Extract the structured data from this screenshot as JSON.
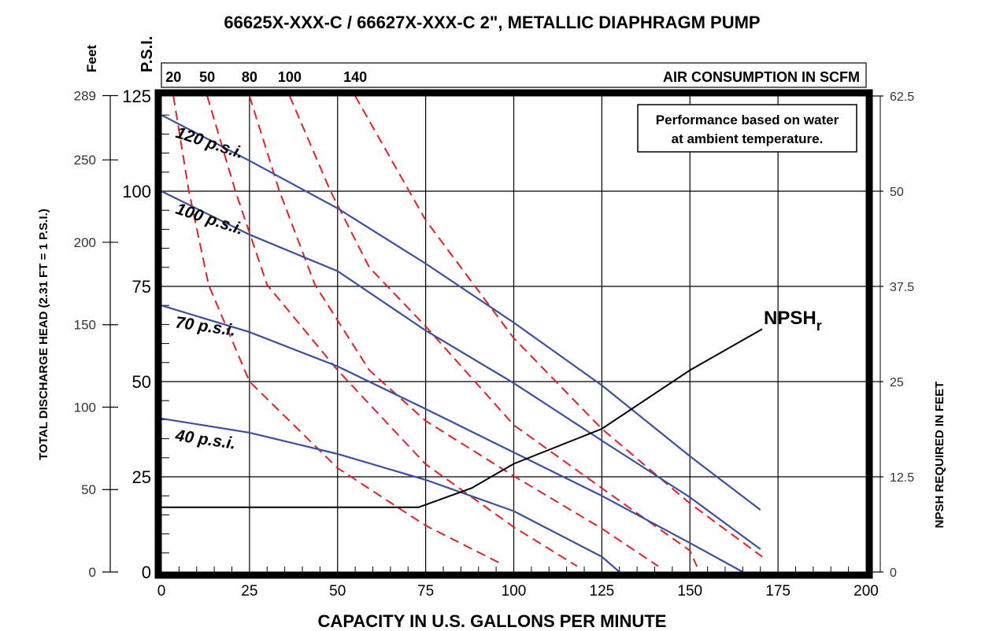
{
  "chart_data": {
    "type": "line",
    "title": "66625X-XXX-C / 66627X-XXX-C 2\", METALLIC DIAPHRAGM PUMP",
    "xlabel": "CAPACITY IN U.S. GALLONS PER MINUTE",
    "ylabel_left": "TOTAL DISCHARGE HEAD (2.31 FT = 1 P.S.I.)",
    "ylabel_left_units_feet": "Feet",
    "ylabel_left_units_psi": "P.S.I.",
    "ylabel_right": "NPSH REQUIRED IN FEET",
    "top_axis_label": "AIR CONSUMPTION IN SCFM",
    "note_lines": [
      "Performance based on water",
      "at ambient temperature."
    ],
    "xlim": [
      0,
      200
    ],
    "ylim_psi": [
      0,
      125
    ],
    "ylim_right_feet": [
      0,
      62.5
    ],
    "x_ticks": [
      "0",
      "25",
      "50",
      "75",
      "100",
      "125",
      "150",
      "175",
      "200"
    ],
    "psi_ticks": [
      "0",
      "25",
      "50",
      "75",
      "100",
      "125"
    ],
    "feet_ticks": [
      "0",
      "50",
      "100",
      "150",
      "200",
      "250",
      "289"
    ],
    "right_ticks": [
      "0",
      "12.5",
      "25",
      "37.5",
      "50",
      "62.5"
    ],
    "grid": true,
    "pressure_series": [
      {
        "name": "120 p.s.i.",
        "x": [
          0,
          25,
          50,
          75,
          100,
          125,
          150,
          170
        ],
        "y": [
          120,
          108,
          95.5,
          81,
          65.5,
          49,
          30.4,
          16.3
        ]
      },
      {
        "name": "100 p.s.i.",
        "x": [
          0,
          25,
          50,
          75,
          100,
          125,
          150,
          170
        ],
        "y": [
          100,
          88.6,
          79,
          63.4,
          49.6,
          34.5,
          19.6,
          6
        ]
      },
      {
        "name": "70 p.s.i.",
        "x": [
          0,
          25,
          50,
          75,
          100,
          125,
          150,
          165
        ],
        "y": [
          70,
          63,
          54,
          42.8,
          31.4,
          20,
          7.6,
          0
        ]
      },
      {
        "name": "40 p.s.i.",
        "x": [
          0,
          25,
          50,
          75,
          100,
          125,
          130
        ],
        "y": [
          40.3,
          36.6,
          31,
          24.2,
          16,
          4,
          0
        ]
      }
    ],
    "air_series": [
      {
        "name": "20",
        "x": [
          3.4,
          7.8,
          13.4,
          25,
          50,
          75,
          97
        ],
        "y": [
          125,
          100,
          75.4,
          50,
          27.3,
          12.2,
          1.9
        ]
      },
      {
        "name": "50",
        "x": [
          13,
          21,
          30,
          50,
          75,
          100,
          118
        ],
        "y": [
          125,
          100,
          75.4,
          53,
          28.3,
          11.8,
          1.5
        ]
      },
      {
        "name": "80",
        "x": [
          25,
          33.5,
          43.6,
          59,
          75,
          100,
          125,
          141
        ],
        "y": [
          125,
          100,
          75.4,
          53,
          39.7,
          25.2,
          11.4,
          1.5
        ]
      },
      {
        "name": "100",
        "x": [
          36.4,
          48,
          59,
          75,
          100,
          125,
          150,
          152
        ],
        "y": [
          125,
          100,
          80,
          64.5,
          38.6,
          22,
          5.6,
          1.4
        ]
      },
      {
        "name": "140",
        "x": [
          55,
          75,
          100,
          125,
          150,
          170.5
        ],
        "y": [
          125,
          92.4,
          61.4,
          37.6,
          18,
          4
        ]
      }
    ],
    "npsh_series": {
      "name": "NPSH",
      "subscript": "r",
      "x": [
        0,
        73,
        88,
        100,
        125,
        150,
        170.5
      ],
      "y_feet": [
        8.5,
        8.5,
        11,
        14.2,
        18.8,
        26.5,
        31.9
      ]
    },
    "colors": {
      "pressure": "#3a4fa0",
      "air": "#e32028",
      "npsh": "#000000"
    }
  }
}
